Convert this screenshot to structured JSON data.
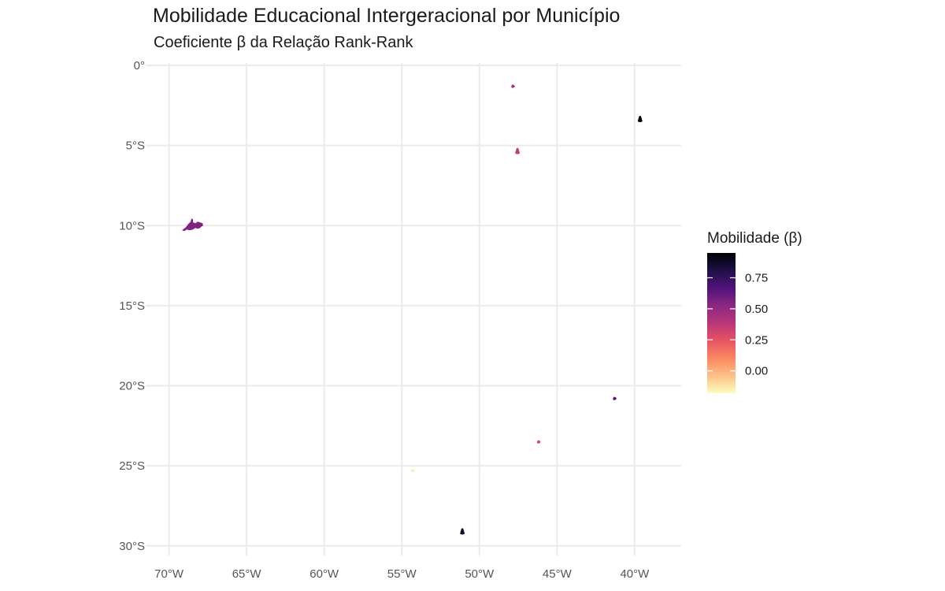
{
  "title": "Mobilidade Educacional Intergeracional por Município",
  "subtitle": "Coeficiente β da Relação Rank-Rank",
  "chart_data": {
    "type": "choropleth-map",
    "title": "Mobilidade Educacional Intergeracional por Município",
    "subtitle": "Coeficiente β da Relação Rank-Rank",
    "xlabel": "",
    "ylabel": "",
    "x_ticks": [
      -70,
      -65,
      -60,
      -55,
      -50,
      -45,
      -40
    ],
    "x_tick_labels": [
      "70°W",
      "65°W",
      "60°W",
      "55°W",
      "50°W",
      "45°W",
      "40°W"
    ],
    "y_ticks": [
      0,
      -5,
      -10,
      -15,
      -20,
      -25,
      -30
    ],
    "y_tick_labels": [
      "0°",
      "5°S",
      "10°S",
      "15°S",
      "20°S",
      "25°S",
      "30°S"
    ],
    "xlim": [
      -71.5,
      -37
    ],
    "ylim": [
      -30.6,
      0.15
    ],
    "grid": true,
    "legend": {
      "title": "Mobilidade (β)",
      "position": "right",
      "range": [
        -0.18,
        0.95
      ],
      "ticks": [
        0.75,
        0.5,
        0.25,
        0.0
      ],
      "tick_labels": [
        "0.75",
        "0.50",
        "0.25",
        "0.00"
      ],
      "colormap": "magma-reversed"
    },
    "regions": [
      {
        "lon": -68.45,
        "lat": -10.0,
        "value": 0.55,
        "shape": "large"
      },
      {
        "lon": -47.85,
        "lat": -1.3,
        "value": 0.45,
        "shape": "tiny"
      },
      {
        "lon": -39.65,
        "lat": -3.35,
        "value": 0.95,
        "shape": "small"
      },
      {
        "lon": -47.55,
        "lat": -5.35,
        "value": 0.35,
        "shape": "small"
      },
      {
        "lon": -41.3,
        "lat": -20.8,
        "value": 0.65,
        "shape": "tiny"
      },
      {
        "lon": -46.2,
        "lat": -23.5,
        "value": 0.3,
        "shape": "tiny"
      },
      {
        "lon": -54.3,
        "lat": -25.3,
        "value": -0.15,
        "shape": "tiny"
      },
      {
        "lon": -51.1,
        "lat": -29.1,
        "value": 0.85,
        "shape": "small"
      }
    ]
  }
}
